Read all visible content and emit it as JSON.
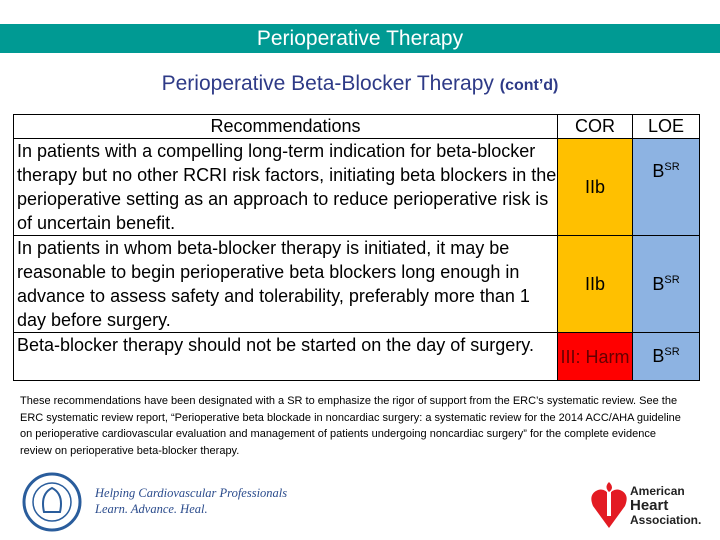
{
  "banner": {
    "title": "Perioperative Therapy"
  },
  "subtitle": {
    "main": "Perioperative Beta-Blocker Therapy",
    "suffix": "(cont’d)"
  },
  "table": {
    "headers": [
      "Recommendations",
      "COR",
      "LOE"
    ],
    "rows": [
      {
        "text": "In patients with a compelling long-term indication for beta-blocker therapy but no other RCRI risk factors, initiating beta blockers in the perioperative setting as an approach to reduce perioperative risk is of uncertain benefit.",
        "cor": "IIb",
        "loe": "B",
        "loe_sup": "SR"
      },
      {
        "text": "In patients in whom beta-blocker therapy is initiated, it may be reasonable to begin perioperative beta blockers long enough in advance to assess safety and tolerability, preferably more than 1 day before surgery.",
        "cor": "IIb",
        "loe": "B",
        "loe_sup": "SR"
      },
      {
        "text": "Beta-blocker therapy should not be started on the day of surgery.",
        "cor": "III: Harm",
        "loe": "B",
        "loe_sup": "SR"
      }
    ],
    "colors": {
      "IIb": "#ffc000",
      "III": "#ff0000",
      "loe": "#8db3e2"
    }
  },
  "footnote": "These recommendations have been designated with a SR to emphasize the rigor of support from the ERC’s systematic review. See the ERC systematic review report, “Perioperative beta blockade in noncardiac surgery: a systematic review for the 2014 ACC/AHA guideline on perioperative cardiovascular evaluation and management of patients undergoing noncardiac surgery” for the complete evidence review on perioperative beta-blocker therapy.",
  "footer": {
    "acc_logo": "American College of Cardiology",
    "acc_tagline1": "Helping Cardiovascular Professionals",
    "acc_tagline2": "Learn. Advance. Heal.",
    "aha_line1": "American",
    "aha_line2": "Heart",
    "aha_line3": "Association."
  }
}
